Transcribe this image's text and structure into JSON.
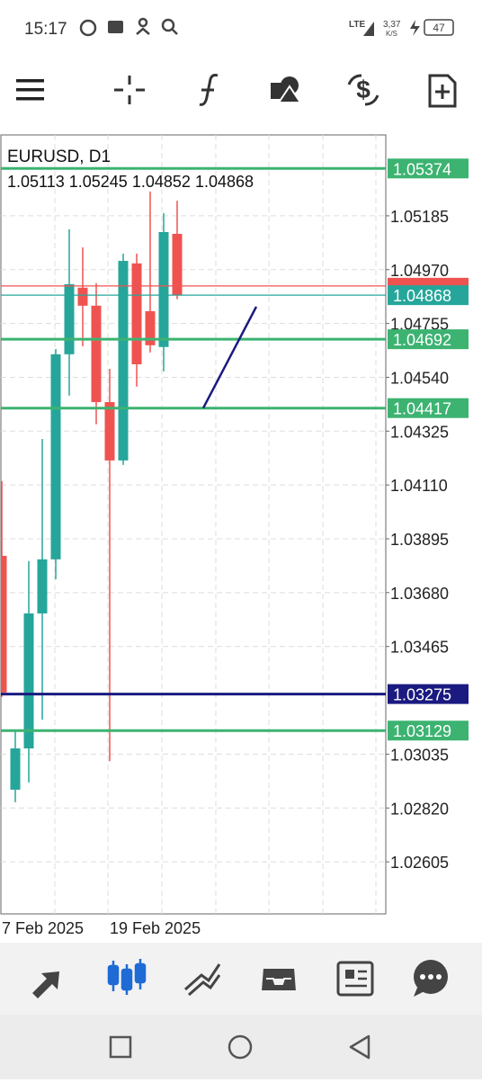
{
  "status_bar": {
    "time": "15:17",
    "network": "LTE",
    "speed": "3,37",
    "speed_unit": "K/S",
    "battery": "47"
  },
  "chart_data": {
    "type": "candlestick",
    "title": "EURUSD, D1",
    "categories": [
      "7 Feb 2025",
      null,
      null,
      null,
      null,
      null,
      null,
      null,
      "19 Feb 2025",
      null,
      null,
      null,
      null,
      null
    ],
    "open": [
      1.03827,
      1.02893,
      1.03058,
      1.03597,
      1.03813,
      1.04632,
      1.04898,
      1.04826,
      1.04441,
      1.04208,
      1.04995,
      1.04804,
      1.04661,
      1.05113
    ],
    "high": [
      1.04125,
      1.0313,
      1.03806,
      1.04294,
      1.04653,
      1.05131,
      1.05059,
      1.04916,
      1.04574,
      1.05034,
      1.05034,
      1.05282,
      1.05196,
      1.05245
    ],
    "low": [
      1.03263,
      1.02843,
      1.02922,
      1.03173,
      1.03734,
      1.04467,
      1.04664,
      1.04352,
      1.03007,
      1.0419,
      1.04503,
      1.04639,
      1.04564,
      1.04852
    ],
    "close": [
      1.03281,
      1.03058,
      1.03597,
      1.03813,
      1.04632,
      1.04912,
      1.04826,
      1.04441,
      1.04208,
      1.05005,
      1.04592,
      1.04668,
      1.0512,
      1.04868
    ],
    "up_color": "#26a69a",
    "down_color": "#ef5350",
    "ylim": [
      1.02397,
      1.05508
    ],
    "yticks": [
      1.05185,
      {
        "value": 1.0497,
        "label": "1.04970"
      },
      1.04755,
      {
        "value": 1.0454,
        "label": "1.04540"
      },
      1.04325,
      {
        "value": 1.0411,
        "label": "1.04110"
      },
      1.03895,
      {
        "value": 1.0368,
        "label": "1.03680"
      },
      1.03465,
      1.03035,
      {
        "value": 1.0282,
        "label": "1.02820"
      },
      1.02605
    ],
    "grid": true,
    "ask": 1.04905,
    "ask_color": "#ef5350",
    "levels": [
      {
        "value": 1.05374,
        "color": "#3cb371"
      },
      {
        "value": 1.04868,
        "color": "#26a69a"
      },
      {
        "value": 1.04692,
        "color": "#3cb371"
      },
      {
        "value": 1.04417,
        "color": "#3cb371"
      },
      {
        "value": 1.03275,
        "color": "#1a1a80"
      },
      {
        "value": 1.03129,
        "color": "#3cb371"
      }
    ],
    "trendline": [
      1.04417,
      1.04822
    ],
    "trendline_color": "#1a1a80"
  }
}
